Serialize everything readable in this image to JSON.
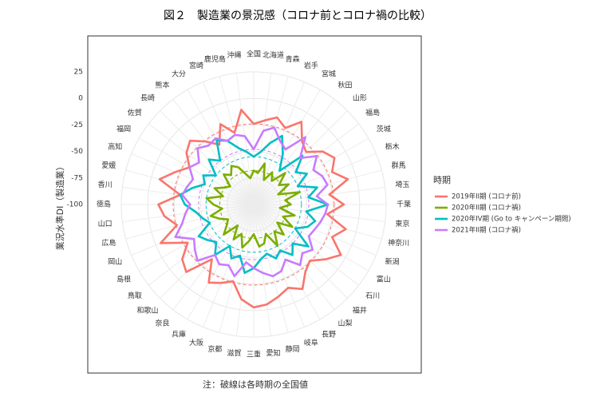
{
  "chart_data": {
    "type": "radar",
    "title": "図２　製造業の景況感（コロナ前とコロナ禍の比較）",
    "y_label": "業況水準DI（製造業）",
    "note": "注：破線は各時期の全国値",
    "legend_title": "時期",
    "categories": [
      "全国",
      "北海道",
      "青森",
      "岩手",
      "宮城",
      "秋田",
      "山形",
      "福島",
      "茨城",
      "栃木",
      "群馬",
      "埼玉",
      "千葉",
      "東京",
      "神奈川",
      "新潟",
      "富山",
      "石川",
      "福井",
      "山梨",
      "長野",
      "岐阜",
      "静岡",
      "愛知",
      "三重",
      "滋賀",
      "京都",
      "大阪",
      "兵庫",
      "奈良",
      "和歌山",
      "鳥取",
      "島根",
      "岡山",
      "広島",
      "山口",
      "徳島",
      "香川",
      "愛媛",
      "高知",
      "福岡",
      "佐賀",
      "長崎",
      "熊本",
      "大分",
      "宮崎",
      "鹿児島",
      "沖縄"
    ],
    "ylim": [
      -100,
      25
    ],
    "yticks": [
      -100,
      -75,
      -50,
      -25,
      0,
      25
    ],
    "grid": true,
    "series": [
      {
        "name": "2019年II期 (コロナ前)",
        "color": "#f8766d",
        "values": [
          -24,
          -20,
          -15,
          -22,
          -10,
          -25,
          -30,
          -18,
          -12,
          -20,
          -8,
          -28,
          -15,
          -30,
          -10,
          -20,
          -5,
          -15,
          -25,
          -20,
          -8,
          -15,
          -10,
          -5,
          -3,
          -10,
          -25,
          -20,
          -15,
          -35,
          -10,
          -15,
          -28,
          -5,
          -25,
          -15,
          -10,
          -30,
          -8,
          -20,
          -30,
          -20,
          -15,
          -25,
          -35,
          -18,
          -30,
          -10
        ]
      },
      {
        "name": "2020年II期 (コロナ禍)",
        "color": "#7cae00",
        "values": [
          -68,
          -70,
          -60,
          -75,
          -65,
          -72,
          -58,
          -70,
          -62,
          -75,
          -55,
          -70,
          -65,
          -75,
          -60,
          -70,
          -58,
          -72,
          -60,
          -68,
          -55,
          -70,
          -62,
          -60,
          -72,
          -65,
          -58,
          -70,
          -62,
          -75,
          -60,
          -68,
          -72,
          -65,
          -58,
          -70,
          -62,
          -55,
          -70,
          -60,
          -68,
          -72,
          -60,
          -65,
          -58,
          -62,
          -70,
          -75
        ]
      },
      {
        "name": "2020年IV期 (Go to キャンペーン期間)",
        "color": "#00bfc4",
        "values": [
          -55,
          -50,
          -40,
          -30,
          -45,
          -60,
          -35,
          -50,
          -42,
          -55,
          -38,
          -48,
          -30,
          -50,
          -40,
          -45,
          -55,
          -35,
          -48,
          -40,
          -50,
          -45,
          -52,
          -48,
          -40,
          -35,
          -50,
          -45,
          -55,
          -40,
          -50,
          -45,
          -40,
          -55,
          -50,
          -45,
          -35,
          -30,
          -40,
          -50,
          -45,
          -55,
          -40,
          -48,
          -30,
          -35,
          -45,
          -50
        ]
      },
      {
        "name": "2021年II期 (コロナ禍)",
        "color": "#c77cff",
        "values": [
          -48,
          -30,
          -25,
          -35,
          -40,
          -20,
          -38,
          -25,
          -35,
          -30,
          -28,
          -40,
          -30,
          -32,
          -35,
          -38,
          -40,
          -30,
          -35,
          -28,
          -40,
          -32,
          -30,
          -35,
          -40,
          -45,
          -30,
          -38,
          -35,
          -40,
          -25,
          -30,
          -35,
          -20,
          -30,
          -35,
          -40,
          -32,
          -35,
          -38,
          -30,
          -35,
          -25,
          -30,
          -28,
          -35,
          -32,
          -35
        ]
      }
    ]
  }
}
